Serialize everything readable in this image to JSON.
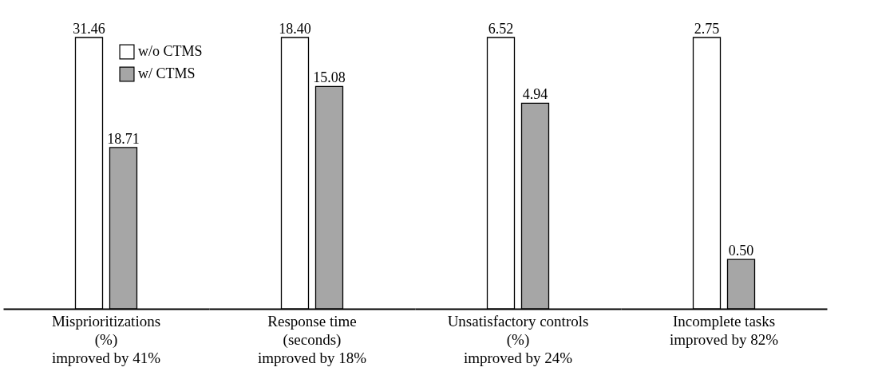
{
  "chart_data": [
    {
      "type": "bar",
      "categories": [
        "Misprioritizations\n(%)\nimproved by 41%"
      ],
      "series": [
        {
          "name": "w/o CTMS",
          "color": "#ffffff",
          "values": [
            31.46
          ],
          "value_labels": [
            "31.46"
          ]
        },
        {
          "name": "w/ CTMS",
          "color": "#a6a6a6",
          "values": [
            18.71
          ],
          "value_labels": [
            "18.71"
          ]
        }
      ],
      "ylim": [
        0,
        31.46
      ],
      "tick_labels": "x",
      "legend": "top right"
    },
    {
      "type": "bar",
      "categories": [
        "Response time\n(seconds)\nimproved by 18%"
      ],
      "series": [
        {
          "color": "#ffffff",
          "values": [
            18.4
          ],
          "value_labels": [
            "18.40"
          ]
        },
        {
          "color": "#a6a6a6",
          "values": [
            15.08
          ],
          "value_labels": [
            "15.08"
          ]
        }
      ],
      "ylim": [
        0,
        18.4
      ],
      "tick_labels": "x"
    },
    {
      "type": "bar",
      "categories": [
        "Unsatisfactory controls\n(%)\nimproved by 24%"
      ],
      "series": [
        {
          "color": "#ffffff",
          "values": [
            6.52
          ],
          "value_labels": [
            "6.52"
          ]
        },
        {
          "color": "#a6a6a6",
          "values": [
            4.94
          ],
          "value_labels": [
            "4.94"
          ]
        }
      ],
      "ylim": [
        0,
        6.52
      ],
      "tick_labels": "x"
    },
    {
      "type": "bar",
      "categories": [
        "Incomplete tasks\n\nimproved by 82%"
      ],
      "series": [
        {
          "color": "#ffffff",
          "values": [
            2.75
          ],
          "value_labels": [
            "2.75"
          ]
        },
        {
          "color": "#a6a6a6",
          "values": [
            0.5
          ],
          "value_labels": [
            "0.50"
          ]
        }
      ],
      "ylim": [
        0,
        2.75
      ],
      "tick_labels": "x"
    }
  ]
}
